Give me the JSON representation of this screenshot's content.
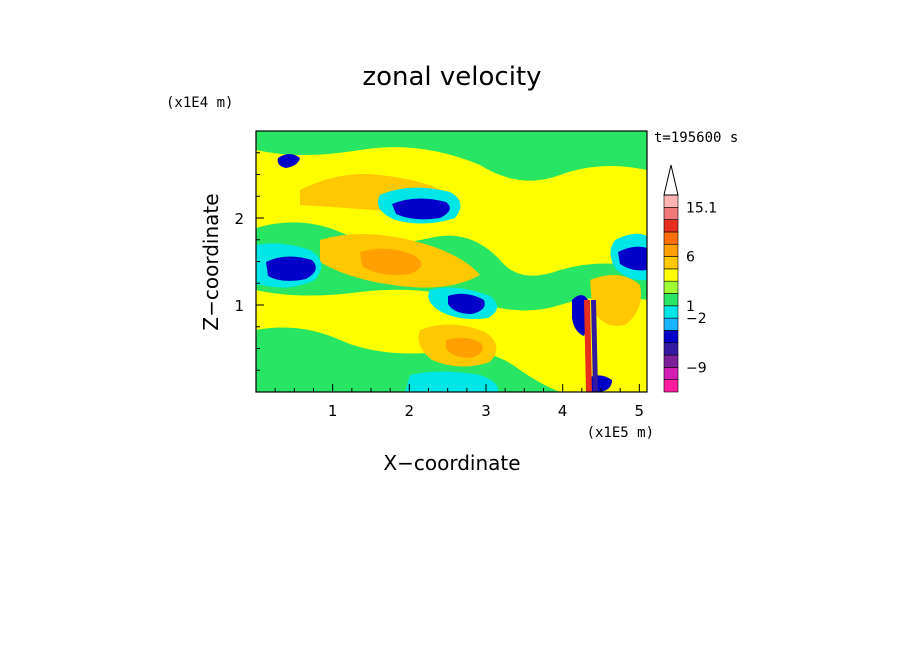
{
  "chart_data": {
    "type": "heatmap",
    "title": "zonal velocity",
    "xlabel": "X−coordinate",
    "ylabel": "Z−coordinate",
    "x_unit": "(x1E5 m)",
    "y_unit": "(x1E4 m)",
    "time_label": "t=195600 s",
    "xlim": [
      0,
      5.1
    ],
    "ylim": [
      0,
      3.0
    ],
    "x_ticks": [
      1,
      2,
      3,
      4,
      5
    ],
    "y_ticks": [
      1,
      2
    ],
    "colorbar": {
      "tick_labels": [
        "15.1",
        "6",
        "1",
        "−2",
        "−9"
      ],
      "levels": [
        {
          "color": "#ff1aa0"
        },
        {
          "color": "#d21eb4"
        },
        {
          "color": "#7d1e9b"
        },
        {
          "color": "#3219a0"
        },
        {
          "color": "#0000c8"
        },
        {
          "color": "#19b4ff"
        },
        {
          "color": "#00e6e6"
        },
        {
          "color": "#28e664"
        },
        {
          "color": "#a0ff32"
        },
        {
          "color": "#ffff00"
        },
        {
          "color": "#ffc800"
        },
        {
          "color": "#ffa000"
        },
        {
          "color": "#ff6e0a"
        },
        {
          "color": "#e62d1e"
        },
        {
          "color": "#f07878"
        },
        {
          "color": "#ffb4b4"
        }
      ]
    },
    "colors": {
      "background": "#ffff00",
      "green": "#28e664",
      "yellow": "#ffff00",
      "light_orange": "#ffc800",
      "orange": "#ffa000",
      "cyan": "#00e6e6",
      "blue": "#0000c8",
      "dark_blue": "#3219a0",
      "red": "#e62d1e"
    }
  }
}
